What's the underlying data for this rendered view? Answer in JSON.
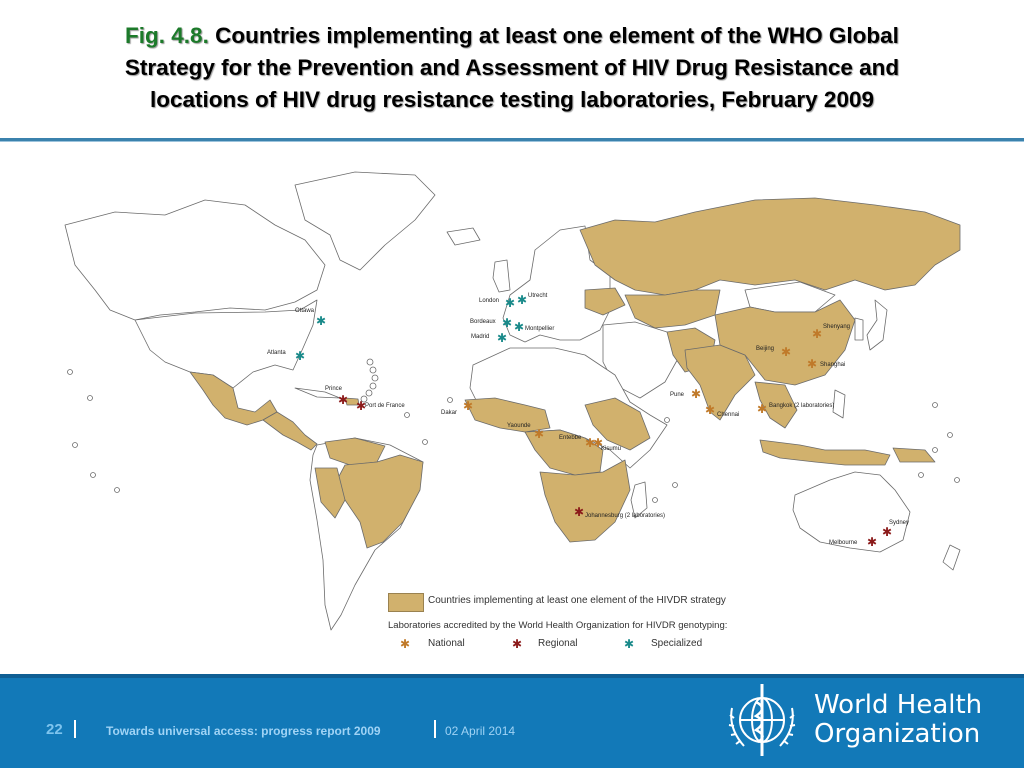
{
  "title": {
    "fig_label": "Fig. 4.8.",
    "line1": "Countries implementing at least one element of the WHO Global",
    "line2": "Strategy for the Prevention and Assessment of HIV Drug Resistance and",
    "line3": "locations of HIV drug resistance testing laboratories, February 2009"
  },
  "colors": {
    "implementing": "#d1b16d",
    "non_implementing": "#ffffff",
    "border": "#6b6b6b",
    "national": "#c07a2a",
    "regional": "#8b1a1a",
    "specialized": "#1a8a8a",
    "footer": "#1279b8",
    "rule": "#3b82ad"
  },
  "map": {
    "labs": [
      {
        "name": "Ottawa",
        "type": "specialized"
      },
      {
        "name": "Atlanta",
        "type": "specialized"
      },
      {
        "name": "London",
        "type": "specialized"
      },
      {
        "name": "Utrecht",
        "type": "specialized"
      },
      {
        "name": "Bordeaux",
        "type": "specialized"
      },
      {
        "name": "Montpellier",
        "type": "specialized"
      },
      {
        "name": "Madrid",
        "type": "specialized"
      },
      {
        "name": "Prince",
        "type": "regional"
      },
      {
        "name": "Port de France",
        "type": "regional"
      },
      {
        "name": "Dakar",
        "type": "national"
      },
      {
        "name": "Yaounde",
        "type": "national"
      },
      {
        "name": "Entebbe",
        "type": "national"
      },
      {
        "name": "Kisumu",
        "type": "national"
      },
      {
        "name": "Johannesburg (2 laboratories)",
        "type": "regional"
      },
      {
        "name": "Pune",
        "type": "national"
      },
      {
        "name": "Chennai",
        "type": "national"
      },
      {
        "name": "Bangkok (2 laboratories)",
        "type": "national"
      },
      {
        "name": "Beijing",
        "type": "national"
      },
      {
        "name": "Shenyang",
        "type": "national"
      },
      {
        "name": "Shanghai",
        "type": "national"
      },
      {
        "name": "Sydney",
        "type": "regional"
      },
      {
        "name": "Melbourne",
        "type": "regional"
      }
    ]
  },
  "legend": {
    "implementing_label": "Countries implementing at least one element of the HIVDR strategy",
    "labs_heading": "Laboratories accredited by the World Health Organization for HIVDR genotyping:",
    "national": "National",
    "regional": "Regional",
    "specialized": "Specialized"
  },
  "footer": {
    "page_number": "22",
    "report_title": "Towards universal access: progress report 2009",
    "date": "02 April 2014",
    "org_line1": "World Health",
    "org_line2": "Organization"
  }
}
